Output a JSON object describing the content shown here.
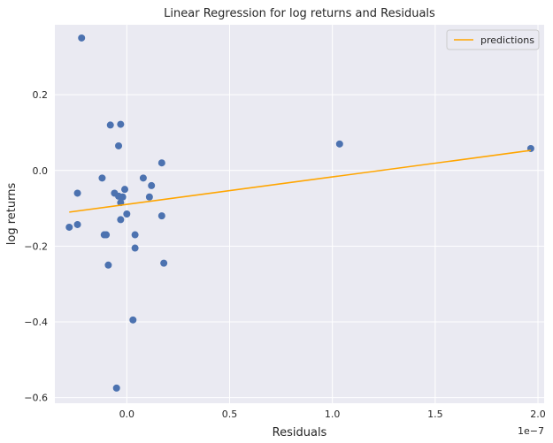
{
  "chart_data": {
    "type": "scatter",
    "title": "Linear Regression for log returns and Residuals",
    "xlabel": "Residuals",
    "ylabel": "log returns",
    "x_offset_label": "1e−7",
    "xlim": [
      -0.35,
      2.03
    ],
    "ylim": [
      -0.615,
      0.385
    ],
    "x_ticks": [
      0.0,
      0.5,
      1.0,
      1.5,
      2.0
    ],
    "x_tick_labels": [
      "0.0",
      "0.5",
      "1.0",
      "1.5",
      "2.0"
    ],
    "y_ticks": [
      -0.6,
      -0.4,
      -0.2,
      0.0,
      0.2
    ],
    "y_tick_labels": [
      "−0.6",
      "−0.4",
      "−0.2",
      "0.0",
      "0.2"
    ],
    "grid": true,
    "legend_position": "top-right",
    "background": "#eaeaf2",
    "series": [
      {
        "type": "scatter",
        "color": "#4c72b0",
        "points": [
          [
            -0.22,
            0.35
          ],
          [
            -0.08,
            0.12
          ],
          [
            -0.03,
            0.122
          ],
          [
            -0.04,
            0.065
          ],
          [
            -0.12,
            -0.02
          ],
          [
            -0.24,
            -0.06
          ],
          [
            -0.06,
            -0.06
          ],
          [
            -0.04,
            -0.068
          ],
          [
            -0.02,
            -0.07
          ],
          [
            -0.01,
            -0.05
          ],
          [
            -0.03,
            -0.085
          ],
          [
            0.0,
            -0.115
          ],
          [
            -0.03,
            -0.13
          ],
          [
            -0.24,
            -0.143
          ],
          [
            -0.28,
            -0.15
          ],
          [
            -0.11,
            -0.17
          ],
          [
            -0.1,
            -0.17
          ],
          [
            0.04,
            -0.17
          ],
          [
            0.04,
            -0.205
          ],
          [
            -0.09,
            -0.25
          ],
          [
            0.17,
            0.02
          ],
          [
            0.08,
            -0.02
          ],
          [
            0.12,
            -0.04
          ],
          [
            0.11,
            -0.07
          ],
          [
            0.17,
            -0.12
          ],
          [
            0.18,
            -0.245
          ],
          [
            0.03,
            -0.395
          ],
          [
            -0.05,
            -0.575
          ],
          [
            1.035,
            0.07
          ],
          [
            1.965,
            0.058
          ]
        ]
      },
      {
        "type": "line",
        "name": "predictions",
        "color": "#ffa500",
        "points": [
          [
            -0.28,
            -0.11
          ],
          [
            1.965,
            0.053
          ]
        ]
      }
    ]
  }
}
